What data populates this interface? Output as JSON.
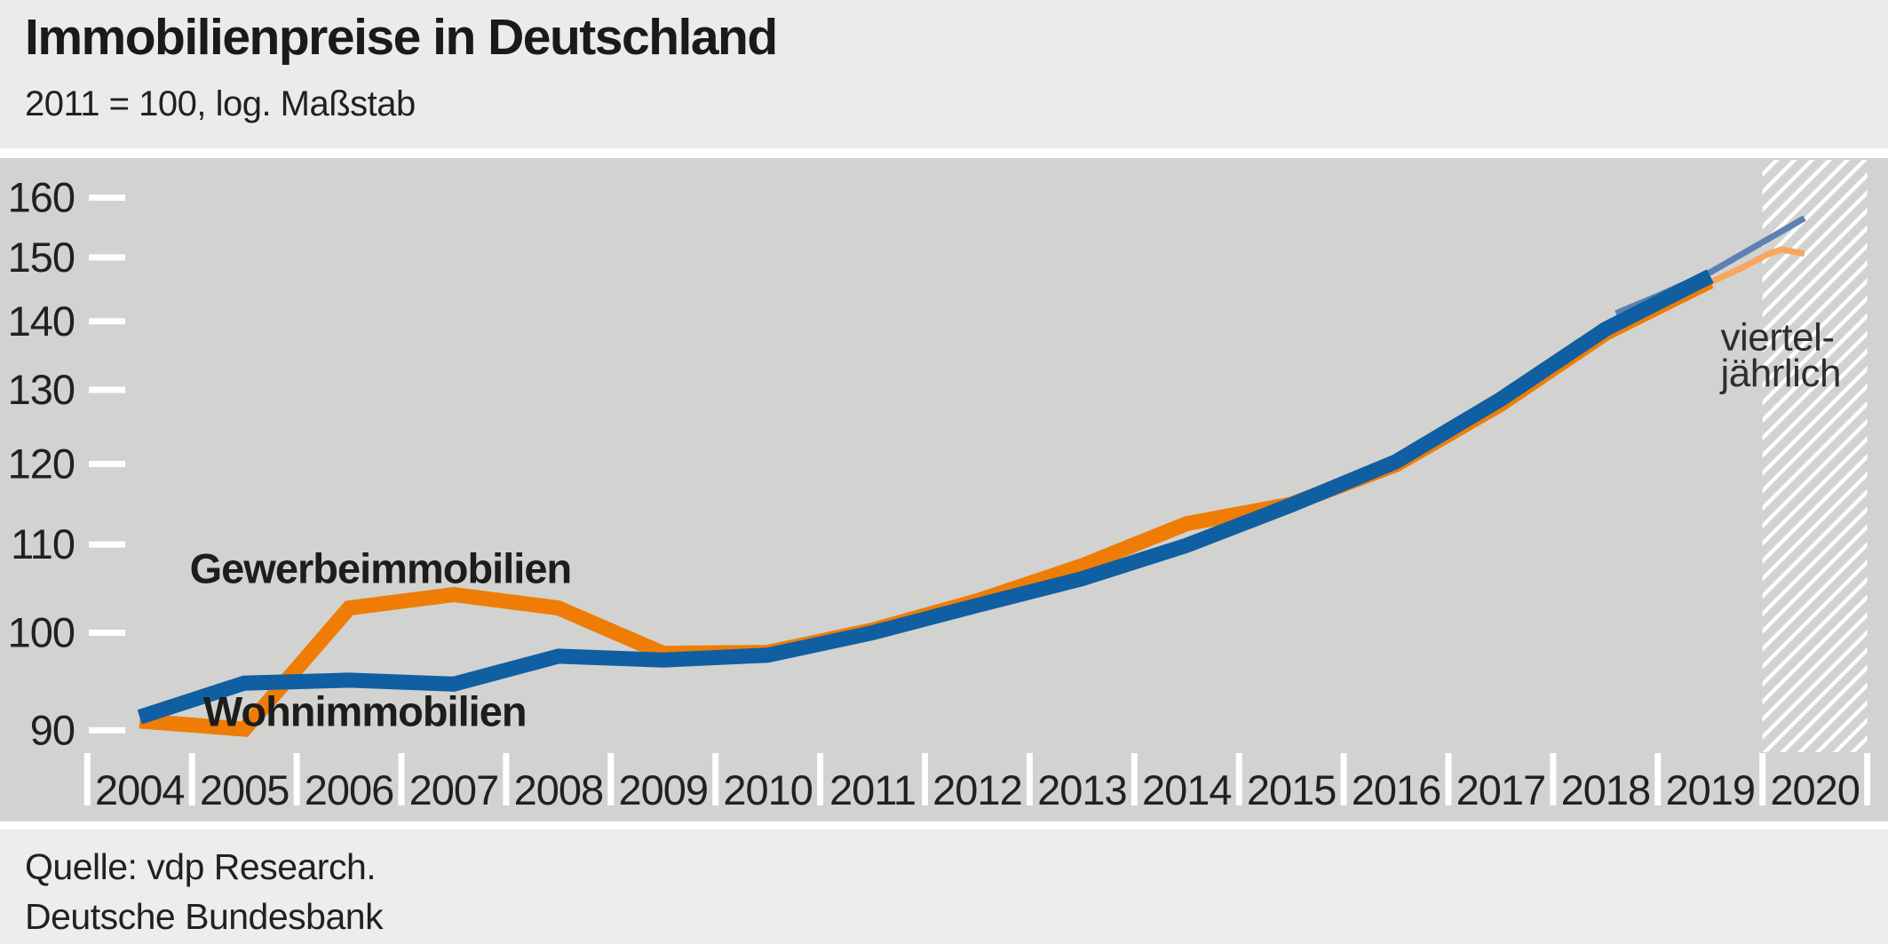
{
  "header": {
    "title": "Immobilienpreise in Deutschland",
    "subtitle": "2011 = 100, log. Maßstab"
  },
  "footer": {
    "source": "Quelle: vdp Research.",
    "publisher": "Deutsche Bundesbank"
  },
  "colors": {
    "header_bg": "#ebebe9",
    "plot_bg": "#d2d2d0",
    "footer_bg": "#ededeb",
    "separator": "#ffffff",
    "tick": "#ffffff",
    "axis_text": "#21211f",
    "label_text": "#1d1d1b",
    "annotation_text": "#2e2e2c",
    "residential": "#0f5fa2",
    "commercial": "#ef7d05",
    "residential_quarterly": "#5d81b4",
    "commercial_quarterly": "#f9a55f"
  },
  "chart_data": {
    "type": "line",
    "title": "Immobilienpreise in Deutschland",
    "subtitle": "2011 = 100, log. Maßstab",
    "y_scale": "log",
    "ylim": [
      87,
      163
    ],
    "y_ticks": [
      90,
      100,
      110,
      120,
      130,
      140,
      150,
      160
    ],
    "xlim": [
      2004,
      2021
    ],
    "year_labels": [
      "2004",
      "2005",
      "2006",
      "2007",
      "2008",
      "2009",
      "2010",
      "2011",
      "2012",
      "2013",
      "2014",
      "2015",
      "2016",
      "2017",
      "2018",
      "2019",
      "2020"
    ],
    "grid": "off",
    "legend": "inline-labels",
    "hatch_region": {
      "start_year": 2020,
      "end_year": 2021,
      "meaning": "vierteljährliche Werte"
    },
    "annotation": {
      "lines": [
        "viertel-",
        "jährlich"
      ],
      "anchor_year": 2019.6,
      "anchor_values": [
        135.7,
        130.5
      ]
    },
    "series": [
      {
        "name": "Wohnimmobilien (vierteljährlich)",
        "frequency": "quarterly",
        "style": "thin",
        "color_key": "residential_quarterly",
        "points": [
          [
            2018.6,
            141.2
          ],
          [
            2019.0,
            143.9
          ],
          [
            2019.5,
            147.6
          ],
          [
            2020.4,
            156.5
          ]
        ]
      },
      {
        "name": "Gewerbeimmobilien (vierteljährlich)",
        "frequency": "quarterly",
        "style": "thin",
        "color_key": "commercial_quarterly",
        "points": [
          [
            2019.5,
            146.0
          ],
          [
            2019.8,
            148.3
          ],
          [
            2020.05,
            150.5
          ],
          [
            2020.18,
            151.3
          ],
          [
            2020.4,
            150.6
          ]
        ]
      },
      {
        "name": "Gewerbeimmobilien",
        "frequency": "annual",
        "style": "thick",
        "color_key": "commercial",
        "points": [
          [
            2004.5,
            90.9
          ],
          [
            2005.5,
            90.1
          ],
          [
            2006.5,
            102.7
          ],
          [
            2007.5,
            104.2
          ],
          [
            2008.5,
            102.7
          ],
          [
            2009.5,
            97.8
          ],
          [
            2010.5,
            97.9
          ],
          [
            2011.5,
            100.3
          ],
          [
            2012.5,
            103.5
          ],
          [
            2013.5,
            107.5
          ],
          [
            2014.5,
            112.5
          ],
          [
            2015.5,
            114.9
          ],
          [
            2016.5,
            119.9
          ],
          [
            2017.5,
            128.0
          ],
          [
            2018.5,
            138.2
          ],
          [
            2019.5,
            146.2
          ]
        ]
      },
      {
        "name": "Wohnimmobilien",
        "frequency": "annual",
        "style": "thick",
        "color_key": "residential",
        "points": [
          [
            2004.5,
            91.3
          ],
          [
            2005.5,
            94.7
          ],
          [
            2006.5,
            95.0
          ],
          [
            2007.5,
            94.6
          ],
          [
            2008.5,
            97.5
          ],
          [
            2009.5,
            97.1
          ],
          [
            2010.5,
            97.6
          ],
          [
            2011.5,
            100.0
          ],
          [
            2012.5,
            103.0
          ],
          [
            2013.5,
            106.0
          ],
          [
            2014.5,
            109.9
          ],
          [
            2015.5,
            114.8
          ],
          [
            2016.5,
            120.3
          ],
          [
            2017.5,
            128.7
          ],
          [
            2018.5,
            138.8
          ],
          [
            2019.5,
            147.0
          ]
        ]
      }
    ],
    "series_labels": [
      {
        "text": "Gewerbeimmobilien",
        "year": 2006.8,
        "value": 105.5
      },
      {
        "text": "Wohnimmobilien",
        "year": 2006.65,
        "value": 90.4
      }
    ]
  }
}
